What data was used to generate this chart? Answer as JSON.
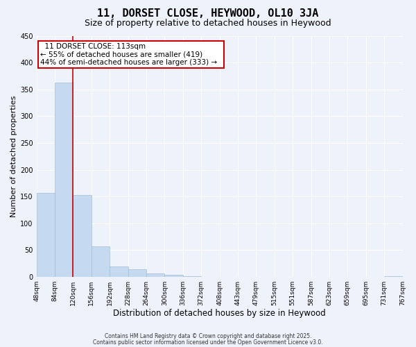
{
  "title": "11, DORSET CLOSE, HEYWOOD, OL10 3JA",
  "subtitle": "Size of property relative to detached houses in Heywood",
  "xlabel": "Distribution of detached houses by size in Heywood",
  "ylabel": "Number of detached properties",
  "bar_values": [
    157,
    362,
    153,
    57,
    20,
    15,
    6,
    4,
    1,
    0,
    0,
    0,
    0,
    0,
    0,
    0,
    0,
    0,
    0,
    1
  ],
  "bar_labels": [
    "48sqm",
    "84sqm",
    "120sqm",
    "156sqm",
    "192sqm",
    "228sqm",
    "264sqm",
    "300sqm",
    "336sqm",
    "372sqm",
    "408sqm",
    "443sqm",
    "479sqm",
    "515sqm",
    "551sqm",
    "587sqm",
    "623sqm",
    "659sqm",
    "695sqm",
    "731sqm",
    "767sqm"
  ],
  "bar_color": "#c5d9f0",
  "bar_edge_color": "#a0bcd8",
  "vline_color": "#cc0000",
  "vline_index": 2,
  "annotation_title": "11 DORSET CLOSE: 113sqm",
  "annotation_line1": "← 55% of detached houses are smaller (419)",
  "annotation_line2": "44% of semi-detached houses are larger (333) →",
  "annotation_box_color": "#ffffff",
  "annotation_box_edge": "#cc0000",
  "ylim": [
    0,
    450
  ],
  "yticks": [
    0,
    50,
    100,
    150,
    200,
    250,
    300,
    350,
    400,
    450
  ],
  "footer1": "Contains HM Land Registry data © Crown copyright and database right 2025.",
  "footer2": "Contains public sector information licensed under the Open Government Licence v3.0.",
  "background_color": "#eef2fb",
  "grid_color": "#ffffff",
  "title_fontsize": 11,
  "subtitle_fontsize": 9,
  "xlabel_fontsize": 8.5,
  "ylabel_fontsize": 8,
  "tick_fontsize": 6.5,
  "annotation_fontsize": 7.5,
  "footer_fontsize": 5.5
}
